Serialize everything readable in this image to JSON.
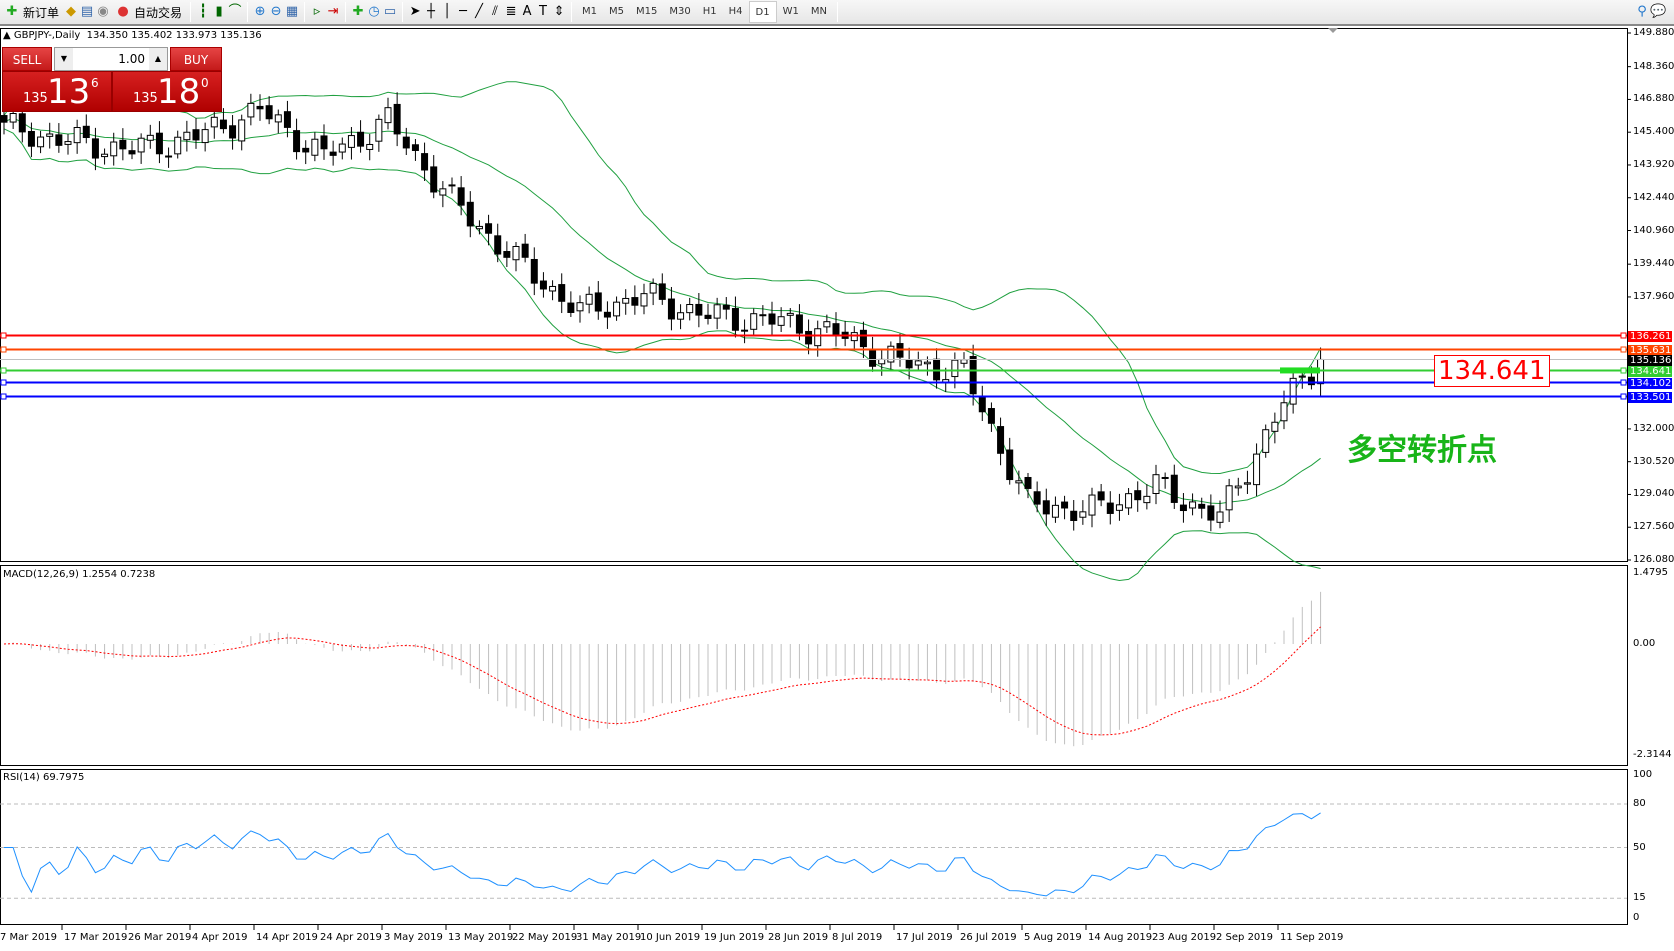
{
  "toolbar": {
    "new_order": "新订单",
    "auto_trading": "自动交易",
    "timeframes": [
      "M1",
      "M5",
      "M15",
      "M30",
      "H1",
      "H4",
      "D1",
      "W1",
      "MN"
    ],
    "active_timeframe": "D1"
  },
  "header": {
    "symbol": "GBPJPY-,Daily",
    "ohlc": "134.350 135.402 133.973 135.136"
  },
  "trade_panel": {
    "sell_label": "SELL",
    "buy_label": "BUY",
    "lot": "1.00",
    "sell_big": "135",
    "sell_main": "13",
    "sell_pip": "6",
    "buy_big": "135",
    "buy_main": "18",
    "buy_pip": "0"
  },
  "price_axis": [
    "149.880",
    "148.360",
    "146.880",
    "145.400",
    "143.920",
    "142.440",
    "140.960",
    "139.440",
    "137.960",
    "132.000",
    "130.520",
    "129.040",
    "127.560",
    "126.080"
  ],
  "levels": [
    {
      "value": "136.261",
      "color": "#ff0000"
    },
    {
      "value": "135.631",
      "color": "#ff4500"
    },
    {
      "value": "135.136",
      "color": "#000000"
    },
    {
      "value": "134.641",
      "color": "#32cd32"
    },
    {
      "value": "134.102",
      "color": "#0000ff"
    },
    {
      "value": "133.501",
      "color": "#0000ff"
    }
  ],
  "price_label": "134.641",
  "annotation": "多空转折点",
  "macd": {
    "label": "MACD(12,26,9) 1.2554 0.7238",
    "axis": [
      "1.4795",
      "0.00",
      "-2.3144"
    ]
  },
  "rsi": {
    "label": "RSI(14) 69.7975",
    "axis": [
      "100",
      "80",
      "50",
      "15",
      "0"
    ]
  },
  "dates": [
    "7 Mar 2019",
    "17 Mar 2019",
    "26 Mar 2019",
    "4 Apr 2019",
    "14 Apr 2019",
    "24 Apr 2019",
    "3 May 2019",
    "13 May 2019",
    "22 May 2019",
    "31 May 2019",
    "10 Jun 2019",
    "19 Jun 2019",
    "28 Jun 2019",
    "8 Jul 2019",
    "17 Jul 2019",
    "26 Jul 2019",
    "5 Aug 2019",
    "14 Aug 2019",
    "23 Aug 2019",
    "2 Sep 2019",
    "11 Sep 2019"
  ],
  "chart_data": {
    "type": "candlestick",
    "closes_at_dates": [
      145.6,
      145.0,
      144.6,
      145.2,
      146.4,
      144.3,
      145.9,
      142.3,
      139.6,
      137.3,
      138.0,
      137.1,
      136.9,
      136.3,
      135.0,
      134.6,
      128.6,
      128.3,
      129.4,
      128.0,
      133.2
    ],
    "last_close": 135.136,
    "ylim": [
      126.08,
      149.88
    ],
    "colors": {
      "bands": "#20a040",
      "macd_hist": "#c0c0c0",
      "macd_signal": "#ff0000",
      "rsi": "#1e90ff"
    }
  }
}
